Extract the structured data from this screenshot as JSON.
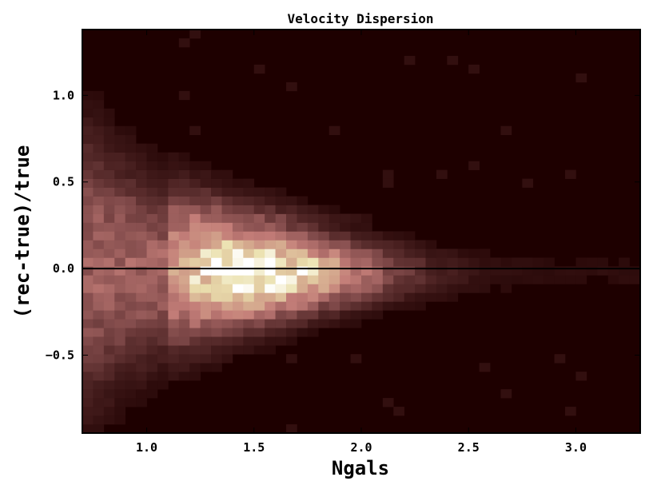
{
  "chart_data": {
    "type": "heatmap",
    "title": "Velocity Dispersion",
    "xlabel": "Ngals",
    "ylabel": "(rec-true)/true",
    "xlim": [
      0.7,
      3.3
    ],
    "ylim": [
      -0.95,
      1.38
    ],
    "xticks": [
      1.0,
      1.5,
      2.0,
      2.5,
      3.0
    ],
    "yticks": [
      -0.5,
      0.0,
      0.5,
      1.0
    ],
    "xtick_labels": [
      "1.0",
      "1.5",
      "2.0",
      "2.5",
      "3.0"
    ],
    "ytick_labels": [
      "−0.5",
      "0.0",
      "0.5",
      "1.0"
    ],
    "reference_line_y": 0.0,
    "bins": {
      "nx": 52,
      "ny": 46
    },
    "colormap": "pink",
    "background_color": "#1e0000",
    "density_model": {
      "description": "2D histogram of residuals; spread narrows with increasing Ngals",
      "peak_x": 1.5,
      "peak_y": 0.0
    }
  }
}
